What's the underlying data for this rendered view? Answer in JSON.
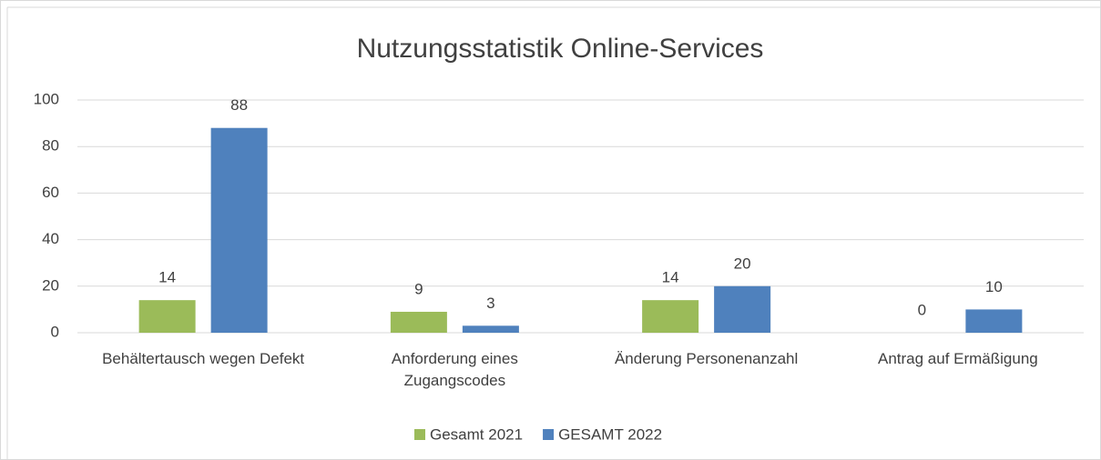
{
  "chart_data": {
    "type": "bar",
    "title": "Nutzungsstatistik Online-Services",
    "categories": [
      "Behältertausch wegen Defekt",
      "Anforderung eines Zugangscodes",
      "Änderung Personenanzahl",
      "Antrag auf Ermäßigung"
    ],
    "series": [
      {
        "name": "Gesamt 2021",
        "color": "#9bbb59",
        "values": [
          14,
          9,
          14,
          0
        ]
      },
      {
        "name": "GESAMT 2022",
        "color": "#4f81bd",
        "values": [
          88,
          3,
          20,
          10
        ]
      }
    ],
    "ylim": [
      0,
      100
    ],
    "yticks": [
      0,
      20,
      40,
      60,
      80,
      100
    ],
    "grid": true,
    "legend": "bottom"
  }
}
